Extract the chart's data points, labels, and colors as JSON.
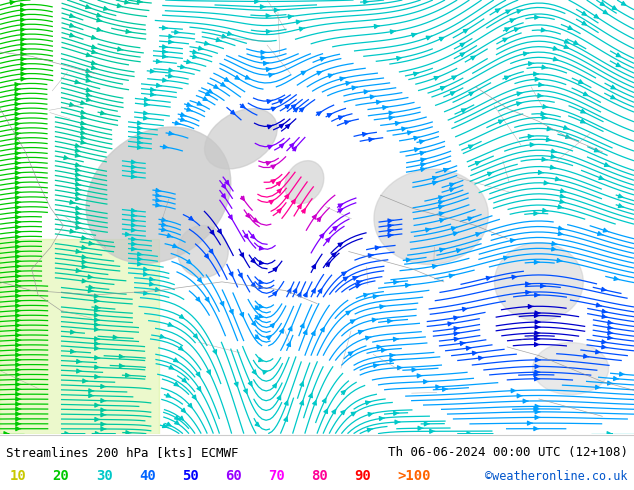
{
  "title_left": "Streamlines 200 hPa [kts] ECMWF",
  "title_right": "Th 06-06-2024 00:00 UTC (12+108)",
  "credit": "©weatheronline.co.uk",
  "legend_values": [
    "10",
    "20",
    "30",
    "40",
    "50",
    "60",
    "70",
    "80",
    "90",
    ">100"
  ],
  "legend_colors": [
    "#c8c800",
    "#00c800",
    "#00c8c8",
    "#0064ff",
    "#0000ff",
    "#9600ff",
    "#ff00ff",
    "#ff0096",
    "#ff0000",
    "#ff6400"
  ],
  "figsize": [
    6.34,
    4.9
  ],
  "dpi": 100,
  "map_bg": "#c8f0a0",
  "gray_bg": "#c8c8c8",
  "title_fontsize": 9,
  "legend_fontsize": 10
}
